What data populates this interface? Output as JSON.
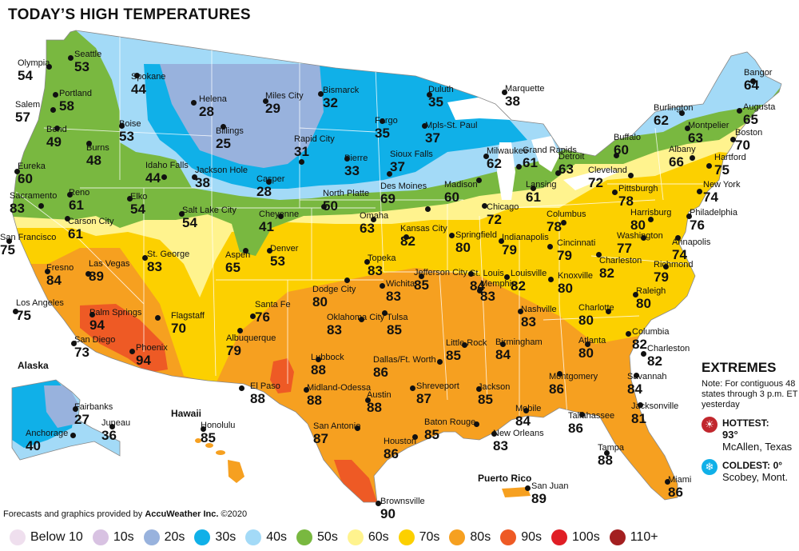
{
  "title": "TODAY’S HIGH TEMPERATURES",
  "colors": {
    "below10": "#efdfee",
    "t10s": "#d8c2e2",
    "t20s": "#98b2dd",
    "t30s": "#10b0e8",
    "t40s": "#a3daf7",
    "t50s": "#79b840",
    "t60s": "#fff38e",
    "t70s": "#fcd000",
    "t80s": "#f6a020",
    "t90s": "#ee5a25",
    "t100s": "#e01e25",
    "t110plus": "#a31f20"
  },
  "cities": [
    {
      "name": "Olympia",
      "temp": "54"
    },
    {
      "name": "Seattle",
      "temp": "53"
    },
    {
      "name": "Portland",
      "temp": "58"
    },
    {
      "name": "Salem",
      "temp": "57"
    },
    {
      "name": "Bend",
      "temp": "49"
    },
    {
      "name": "Spokane",
      "temp": "44"
    },
    {
      "name": "Boise",
      "temp": "53"
    },
    {
      "name": "Burns",
      "temp": "48"
    },
    {
      "name": "Helena",
      "temp": "28"
    },
    {
      "name": "Miles City",
      "temp": "29"
    },
    {
      "name": "Billings",
      "temp": "25"
    },
    {
      "name": "Bismarck",
      "temp": "32"
    },
    {
      "name": "Duluth",
      "temp": "35"
    },
    {
      "name": "Marquette",
      "temp": "38"
    },
    {
      "name": "Fargo",
      "temp": "35"
    },
    {
      "name": "Mpls-St. Paul",
      "temp": "37"
    },
    {
      "name": "Rapid City",
      "temp": "31"
    },
    {
      "name": "Pierre",
      "temp": "33"
    },
    {
      "name": "Sioux Falls",
      "temp": "37"
    },
    {
      "name": "Idaho Falls",
      "temp": "44"
    },
    {
      "name": "Jackson Hole",
      "temp": "38"
    },
    {
      "name": "Casper",
      "temp": "28"
    },
    {
      "name": "Eureka",
      "temp": "60"
    },
    {
      "name": "Reno",
      "temp": "61"
    },
    {
      "name": "Elko",
      "temp": "54"
    },
    {
      "name": "Sacramento",
      "temp": "83"
    },
    {
      "name": "Carson City",
      "temp": "61"
    },
    {
      "name": "Salt Lake City",
      "temp": "54"
    },
    {
      "name": "Cheyenne",
      "temp": "41"
    },
    {
      "name": "North Platte",
      "temp": "50"
    },
    {
      "name": "Des Moines",
      "temp": "69"
    },
    {
      "name": "Madison",
      "temp": "60"
    },
    {
      "name": "Milwaukee",
      "temp": "62"
    },
    {
      "name": "Grand Rapids",
      "temp": "61"
    },
    {
      "name": "Detroit",
      "temp": "63"
    },
    {
      "name": "Lansing",
      "temp": "61"
    },
    {
      "name": "Buffalo",
      "temp": "60"
    },
    {
      "name": "Cleveland",
      "temp": "72"
    },
    {
      "name": "Burlington",
      "temp": "62"
    },
    {
      "name": "Montpelier",
      "temp": "63"
    },
    {
      "name": "Bangor",
      "temp": "64"
    },
    {
      "name": "Augusta",
      "temp": "65"
    },
    {
      "name": "Boston",
      "temp": "70"
    },
    {
      "name": "Albany",
      "temp": "66"
    },
    {
      "name": "Hartford",
      "temp": "75"
    },
    {
      "name": "New York",
      "temp": "74"
    },
    {
      "name": "Pittsburgh",
      "temp": "78"
    },
    {
      "name": "Harrisburg",
      "temp": "80"
    },
    {
      "name": "Philadelphia",
      "temp": "76"
    },
    {
      "name": "Washington",
      "temp": "77"
    },
    {
      "name": "Annapolis",
      "temp": "74"
    },
    {
      "name": "Richmond",
      "temp": "79"
    },
    {
      "name": "Charleston",
      "temp": "82"
    },
    {
      "name": "San Francisco",
      "temp": "75"
    },
    {
      "name": "Fresno",
      "temp": "84"
    },
    {
      "name": "Las Vegas",
      "temp": "89"
    },
    {
      "name": "St. George",
      "temp": "83"
    },
    {
      "name": "Aspen",
      "temp": "65"
    },
    {
      "name": "Denver",
      "temp": "53"
    },
    {
      "name": "Omaha",
      "temp": "63"
    },
    {
      "name": "Kansas City",
      "temp": "82"
    },
    {
      "name": "Springfield",
      "temp": "80"
    },
    {
      "name": "Chicago",
      "temp": "72"
    },
    {
      "name": "Indianapolis",
      "temp": "79"
    },
    {
      "name": "Columbus",
      "temp": "78"
    },
    {
      "name": "Cincinnati",
      "temp": "79"
    },
    {
      "name": "Topeka",
      "temp": "83"
    },
    {
      "name": "Wichita",
      "temp": "83"
    },
    {
      "name": "Jefferson City",
      "temp": "85"
    },
    {
      "name": "St. Louis",
      "temp": "84"
    },
    {
      "name": "Louisville",
      "temp": "82"
    },
    {
      "name": "Knoxville",
      "temp": "80"
    },
    {
      "name": "Charlotte",
      "temp": "80"
    },
    {
      "name": "Raleigh",
      "temp": "80"
    },
    {
      "name": "Los Angeles",
      "temp": "75"
    },
    {
      "name": "Palm Springs",
      "temp": "94"
    },
    {
      "name": "San Diego",
      "temp": "73"
    },
    {
      "name": "Phoenix",
      "temp": "94"
    },
    {
      "name": "Flagstaff",
      "temp": "70"
    },
    {
      "name": "Santa Fe",
      "temp": "76"
    },
    {
      "name": "Albuquerque",
      "temp": "79"
    },
    {
      "name": "Dodge City",
      "temp": "80"
    },
    {
      "name": "Oklahoma City",
      "temp": "83"
    },
    {
      "name": "Tulsa",
      "temp": "85"
    },
    {
      "name": "Memphis",
      "temp": "83"
    },
    {
      "name": "Nashville",
      "temp": "83"
    },
    {
      "name": "Little Rock",
      "temp": "85"
    },
    {
      "name": "Birmingham",
      "temp": "84"
    },
    {
      "name": "Atlanta",
      "temp": "80"
    },
    {
      "name": "Columbia",
      "temp": "82"
    },
    {
      "name": "Charleston",
      "temp": "82"
    },
    {
      "name": "Savannah",
      "temp": "84"
    },
    {
      "name": "Lubbock",
      "temp": "88"
    },
    {
      "name": "Dallas/Ft. Worth",
      "temp": "86"
    },
    {
      "name": "El Paso",
      "temp": "88"
    },
    {
      "name": "Midland-Odessa",
      "temp": "88"
    },
    {
      "name": "Shreveport",
      "temp": "87"
    },
    {
      "name": "Jackson",
      "temp": "85"
    },
    {
      "name": "Montgomery",
      "temp": "86"
    },
    {
      "name": "Jacksonville",
      "temp": "81"
    },
    {
      "name": "Austin",
      "temp": "88"
    },
    {
      "name": "Mobile",
      "temp": "84"
    },
    {
      "name": "Tallahassee",
      "temp": "86"
    },
    {
      "name": "San Antonio",
      "temp": "87"
    },
    {
      "name": "Houston",
      "temp": "86"
    },
    {
      "name": "Baton Rouge",
      "temp": "85"
    },
    {
      "name": "New Orleans",
      "temp": "83"
    },
    {
      "name": "Tampa",
      "temp": "88"
    },
    {
      "name": "Miami",
      "temp": "86"
    },
    {
      "name": "Brownsville",
      "temp": "90"
    },
    {
      "name": "Fairbanks",
      "temp": "27"
    },
    {
      "name": "Anchorage",
      "temp": "40"
    },
    {
      "name": "Juneau",
      "temp": "36"
    },
    {
      "name": "Honolulu",
      "temp": "85"
    },
    {
      "name": "San Juan",
      "temp": "89"
    }
  ],
  "regions": {
    "alaska": "Alaska",
    "hawaii": "Hawaii",
    "puerto_rico": "Puerto Rico"
  },
  "extremes": {
    "title": "EXTREMES",
    "note": "Note: For contiguous 48 states through 3 p.m. ET yesterday",
    "hottest_label": "HOTTEST:",
    "hottest_value": "93°",
    "hottest_place": "McAllen, Texas",
    "coldest_label": "COLDEST:",
    "coldest_value": "0°",
    "coldest_place": "Scobey, Mont."
  },
  "credit": {
    "prefix": "Forecasts and graphics provided by ",
    "brand": "AccuWeather Inc.",
    "suffix": " ©2020"
  },
  "legend": [
    {
      "label": "Below 10",
      "color": "#efdfee"
    },
    {
      "label": "10s",
      "color": "#d8c2e2"
    },
    {
      "label": "20s",
      "color": "#98b2dd"
    },
    {
      "label": "30s",
      "color": "#10b0e8"
    },
    {
      "label": "40s",
      "color": "#a3daf7"
    },
    {
      "label": "50s",
      "color": "#79b840"
    },
    {
      "label": "60s",
      "color": "#fff38e"
    },
    {
      "label": "70s",
      "color": "#fcd000"
    },
    {
      "label": "80s",
      "color": "#f6a020"
    },
    {
      "label": "90s",
      "color": "#ee5a25"
    },
    {
      "label": "100s",
      "color": "#e01e25"
    },
    {
      "label": "110+",
      "color": "#a31f20"
    }
  ]
}
